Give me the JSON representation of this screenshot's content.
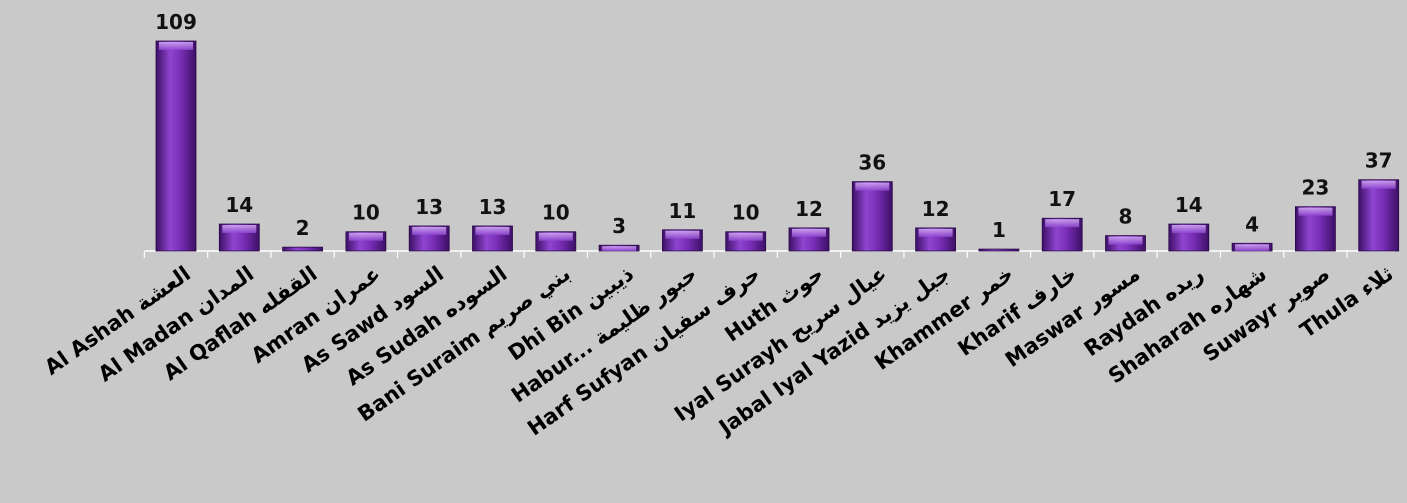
{
  "chart_data": {
    "type": "bar",
    "categories": [
      "Al Ashah العشة",
      "Al Madan المدان",
      "Al Qaflah القفله",
      "Amran عمران",
      "As Sawd السود",
      "As Sudah السوده",
      "Bani Suraim بني صريم",
      "Dhi Bin ذيبين",
      "Habur... حبور ظليمة",
      "Harf Sufyan حرف سفيان",
      "Huth حوث",
      "Iyal Surayh عيال سريح",
      "Jabal Iyal Yazid جبل يزيد",
      "Khammer خمر",
      "Kharif خارف",
      "Maswar مسور",
      "Raydah ريده",
      "Shaharah شهاره",
      "Suwayr صوير",
      "Thula ثلاء"
    ],
    "values": [
      109,
      14,
      2,
      10,
      13,
      13,
      10,
      3,
      11,
      10,
      12,
      36,
      12,
      1,
      17,
      8,
      14,
      4,
      23,
      37
    ],
    "ylim": [
      0,
      109
    ],
    "grid": false,
    "legend": "none",
    "colors": {
      "bar": "#7a2fb8",
      "bar_light": "#b57ae6",
      "bar_dark": "#3d0f66",
      "axis": "#ffffff",
      "background": "#c9c9c9"
    }
  }
}
